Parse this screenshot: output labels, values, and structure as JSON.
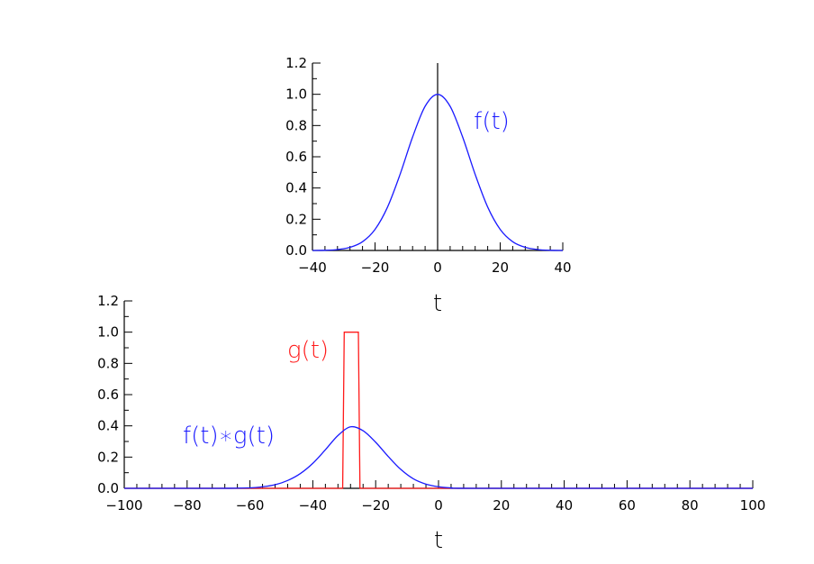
{
  "chart_data": [
    {
      "type": "line",
      "xlim": [
        -40,
        40
      ],
      "ylim": [
        0,
        1.2
      ],
      "xticks": [
        -40,
        -20,
        0,
        20,
        40
      ],
      "xtick_labels": [
        "−40",
        "−20",
        "0",
        "20",
        "40"
      ],
      "yticks": [
        0,
        0.2,
        0.4,
        0.6,
        0.8,
        1.0,
        1.2
      ],
      "ytick_labels": [
        "0.0",
        "0.2",
        "0.4",
        "0.6",
        "0.8",
        "1.0",
        "1.2"
      ],
      "xlabel": "t",
      "ylabel": "",
      "grid": false,
      "vline_x": 0,
      "annotations": [
        {
          "text": "f(t)",
          "color": "#1a1aff"
        }
      ],
      "series": [
        {
          "name": "f(t)",
          "color": "#1a1aff",
          "x": [
            -40,
            -36,
            -32,
            -28,
            -24,
            -20,
            -16,
            -12,
            -8,
            -4,
            0,
            4,
            8,
            12,
            16,
            20,
            24,
            28,
            32,
            36,
            40
          ],
          "y": [
            0.0,
            0.001,
            0.006,
            0.02,
            0.056,
            0.135,
            0.278,
            0.487,
            0.726,
            0.923,
            1.0,
            0.923,
            0.726,
            0.487,
            0.278,
            0.135,
            0.056,
            0.02,
            0.006,
            0.001,
            0.0
          ]
        }
      ]
    },
    {
      "type": "line",
      "xlim": [
        -100,
        100
      ],
      "ylim": [
        0,
        1.2
      ],
      "xticks": [
        -100,
        -80,
        -60,
        -40,
        -20,
        0,
        20,
        40,
        60,
        80,
        100
      ],
      "xtick_labels": [
        "−100",
        "−80",
        "−60",
        "−40",
        "−20",
        "0",
        "20",
        "40",
        "60",
        "80",
        "100"
      ],
      "yticks": [
        0,
        0.2,
        0.4,
        0.6,
        0.8,
        1.0,
        1.2
      ],
      "ytick_labels": [
        "0.0",
        "0.2",
        "0.4",
        "0.6",
        "0.8",
        "1.0",
        "1.2"
      ],
      "xlabel": "t",
      "ylabel": "",
      "grid": false,
      "annotations": [
        {
          "text": "g(t)",
          "color": "#ff1a1a"
        },
        {
          "text": "f(t)∗g(t)",
          "color": "#1a1aff"
        }
      ],
      "series": [
        {
          "name": "g(t)",
          "color": "#ff1a1a",
          "x": [
            -100,
            -30.5,
            -30,
            -25.5,
            -25,
            100
          ],
          "y": [
            0,
            0,
            1.0,
            1.0,
            0,
            0
          ]
        },
        {
          "name": "f(t)∗g(t)",
          "color": "#1a1aff",
          "x": [
            -100,
            -70,
            -60,
            -56,
            -52,
            -48,
            -44,
            -40,
            -36,
            -32,
            -28,
            -24,
            -20,
            -16,
            -12,
            -8,
            -4,
            0,
            4,
            14,
            100
          ],
          "y": [
            0,
            0.0,
            0.003,
            0.01,
            0.023,
            0.05,
            0.094,
            0.16,
            0.247,
            0.338,
            0.394,
            0.369,
            0.295,
            0.204,
            0.121,
            0.061,
            0.027,
            0.01,
            0.003,
            0.0,
            0
          ]
        }
      ]
    }
  ]
}
